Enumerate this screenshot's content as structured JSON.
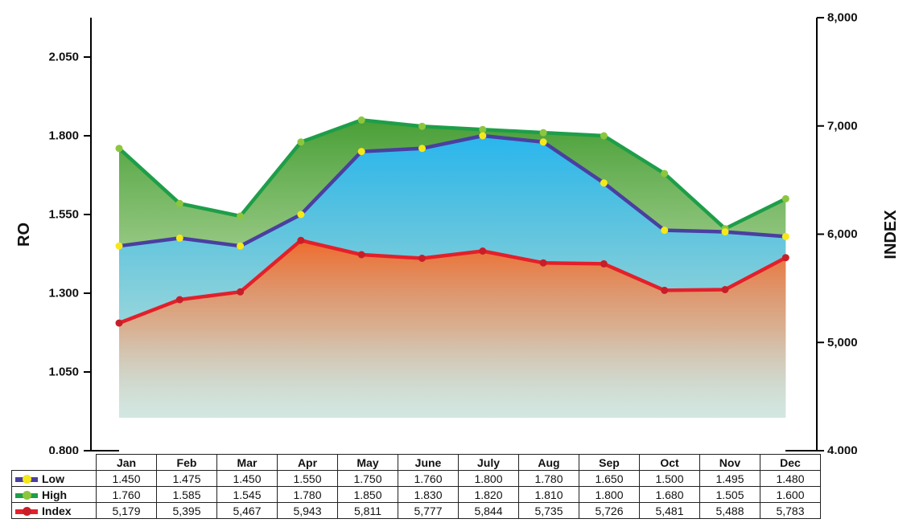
{
  "chart_data": {
    "type": "area",
    "title": "",
    "y_left": {
      "label": "RO",
      "min": 0.8,
      "max": 2.175,
      "ticks": [
        "0.800",
        "1.050",
        "1.300",
        "1.550",
        "1.800",
        "2.050"
      ]
    },
    "y_right": {
      "label": "INDEX",
      "min": 4000,
      "max": 8000,
      "ticks": [
        "4,000",
        "5,000",
        "6,000",
        "7,000",
        "8,000"
      ]
    },
    "categories": [
      "Jan",
      "Feb",
      "Mar",
      "Apr",
      "May",
      "June",
      "July",
      "Aug",
      "Sep",
      "Oct",
      "Nov",
      "Dec"
    ],
    "series": [
      {
        "name": "Low",
        "axis": "left",
        "color": "#4a3fa0",
        "marker": "#f5e81a",
        "values": [
          1.45,
          1.475,
          1.45,
          1.55,
          1.75,
          1.76,
          1.8,
          1.78,
          1.65,
          1.5,
          1.495,
          1.48
        ],
        "labels": [
          "1.450",
          "1.475",
          "1.450",
          "1.550",
          "1.750",
          "1.760",
          "1.800",
          "1.780",
          "1.650",
          "1.500",
          "1.495",
          "1.480"
        ]
      },
      {
        "name": "High",
        "axis": "left",
        "color": "#1e9e48",
        "marker": "#8cc63e",
        "values": [
          1.76,
          1.585,
          1.545,
          1.78,
          1.85,
          1.83,
          1.82,
          1.81,
          1.8,
          1.68,
          1.505,
          1.6
        ],
        "labels": [
          "1.760",
          "1.585",
          "1.545",
          "1.780",
          "1.850",
          "1.830",
          "1.820",
          "1.810",
          "1.800",
          "1.680",
          "1.505",
          "1.600"
        ]
      },
      {
        "name": "Index",
        "axis": "right",
        "color": "#e3202a",
        "marker": "#c81e28",
        "values": [
          5179,
          5395,
          5467,
          5943,
          5811,
          5777,
          5844,
          5735,
          5726,
          5481,
          5488,
          5783
        ],
        "labels": [
          "5,179",
          "5,395",
          "5,467",
          "5,943",
          "5,811",
          "5,777",
          "5,844",
          "5,735",
          "5,726",
          "5,481",
          "5,488",
          "5,783"
        ]
      }
    ],
    "legend": "table-below"
  }
}
